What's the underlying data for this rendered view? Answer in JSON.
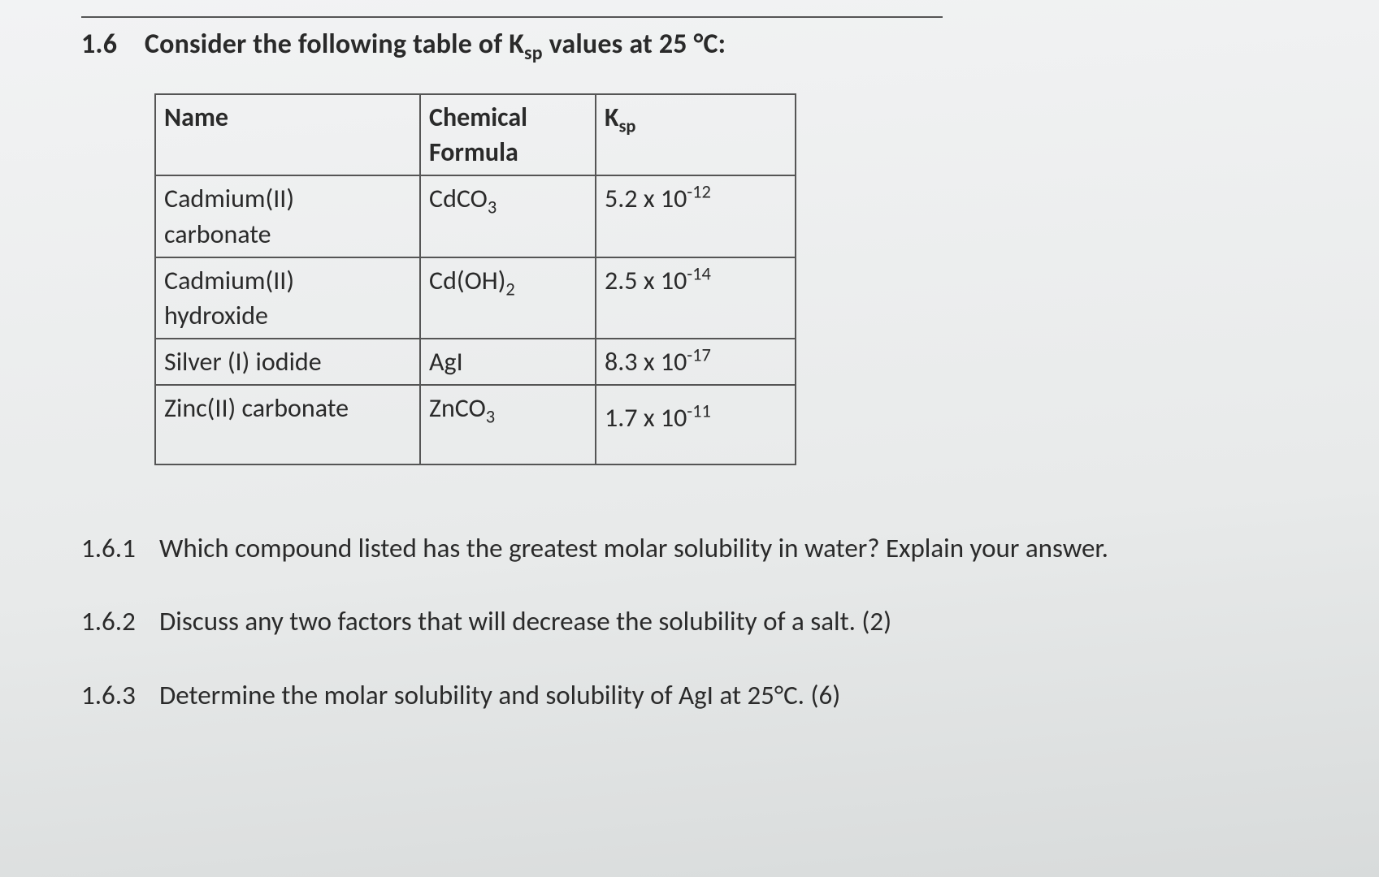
{
  "question_number": "1.6",
  "prompt_html": "Consider the following table of K<sub>sp</sub> values at 25 °C:",
  "table": {
    "columns": {
      "name": "Name",
      "chem_html": "Chemical<br>Formula",
      "ksp_html": "K<sub>sp</sub>"
    },
    "rows": [
      {
        "name_html": "Cadmium(II)<br>carbonate",
        "chem_html": "CdCO<sub>3</sub>",
        "ksp_html": "5.2 x 10<sup>-12</sup>"
      },
      {
        "name_html": "Cadmium(II)<br>hydroxide",
        "chem_html": "Cd(OH)<sub>2</sub>",
        "ksp_html": "2.5 x 10<sup>-14</sup>"
      },
      {
        "name_html": "Silver (I) iodide",
        "chem_html": "AgI",
        "ksp_html": "8.3 x 10<sup>-17</sup>"
      },
      {
        "name_html": "Zinc(II) carbonate",
        "chem_html": "ZnCO<sub>3</sub>",
        "ksp_html": "1.7 x 10<sup>-11</sup>"
      }
    ],
    "border_color": "#555555",
    "font_size_pt": 24
  },
  "subquestions": [
    {
      "num": "1.6.1",
      "text_html": "Which compound listed has the greatest molar solubility in water? Explain your answer."
    },
    {
      "num": "1.6.2",
      "text_html": "Discuss any two factors that will decrease the solubility of a salt. (2)"
    },
    {
      "num": "1.6.3",
      "text_html": "Determine the molar solubility and solubility of AgI at 25°C. (6)"
    }
  ],
  "style": {
    "background_gradient": [
      "#f2f3f4",
      "#e8eaea",
      "#d8dbdb"
    ],
    "text_color": "#2a2a2a",
    "heading_font_size_pt": 26,
    "body_font_size_pt": 25,
    "font_family": "Segoe UI / Calibri",
    "rule_color": "#555555"
  }
}
